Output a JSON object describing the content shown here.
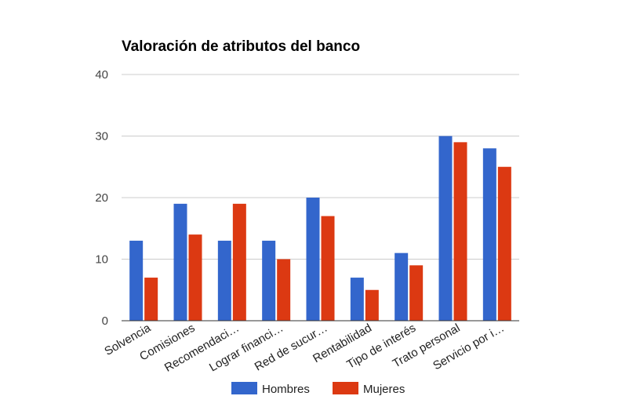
{
  "chart_data": {
    "type": "bar",
    "title": "Valoración de atributos del banco",
    "xlabel": "",
    "ylabel": "",
    "ylim": [
      0,
      40
    ],
    "yticks": [
      "0",
      "10",
      "20",
      "30",
      "40"
    ],
    "grid": true,
    "legend_position": "bottom",
    "categories": [
      "Solvencia",
      "Comisiones",
      "Recomendaci…",
      "Lograr financi…",
      "Red de sucur…",
      "Rentabilidad",
      "Tipo de interés",
      "Trato personal",
      "Servicio por i…"
    ],
    "series": [
      {
        "name": "Hombres",
        "color": "#3366cc",
        "values": [
          13,
          19,
          13,
          13,
          20,
          7,
          11,
          30,
          28
        ]
      },
      {
        "name": "Mujeres",
        "color": "#dc3912",
        "values": [
          7,
          14,
          19,
          10,
          17,
          5,
          9,
          29,
          25
        ]
      }
    ]
  }
}
